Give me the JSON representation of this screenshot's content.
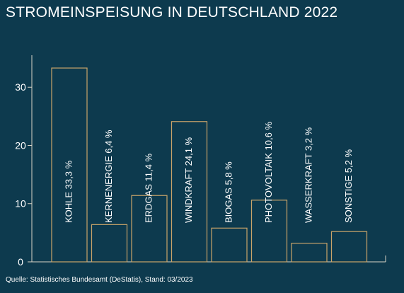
{
  "colors": {
    "background": "#0d3a4e",
    "bar_stroke": "#c9a46a",
    "axis": "#d9d4c7",
    "text": "#ffffff"
  },
  "chart_data": {
    "type": "bar",
    "title": "STROMEINSPEISUNG IN DEUTSCHLAND 2022",
    "source": "Quelle: Statistisches Bundesamt (DeStatis), Stand: 03/2023",
    "categories": [
      "KOHLE",
      "KERNENERGIE",
      "ERDGAS",
      "WINDKRAFT",
      "BIOGAS",
      "PHOTOVOLTAIK",
      "WASSERKRAFT",
      "SONSTIGE"
    ],
    "values": [
      33.3,
      6.4,
      11.4,
      24.1,
      5.8,
      10.6,
      3.2,
      5.2
    ],
    "data_labels": [
      "KOHLE 33,3 %",
      "KERNENERGIE 6,4 %",
      "ERDGAS 11,4 %",
      "WINDKRAFT 24,1 %",
      "BIOGAS 5,8 %",
      "PHOTOVOLTAIK 10,6 %",
      "WASSERKRAFT 3,2 %",
      "SONSTIGE 5,2 %"
    ],
    "yticks": [
      0,
      10,
      20,
      30
    ],
    "ylim": [
      0,
      35.5
    ],
    "xlabel": "",
    "ylabel": "",
    "grid": false,
    "bar_fill": "none"
  }
}
